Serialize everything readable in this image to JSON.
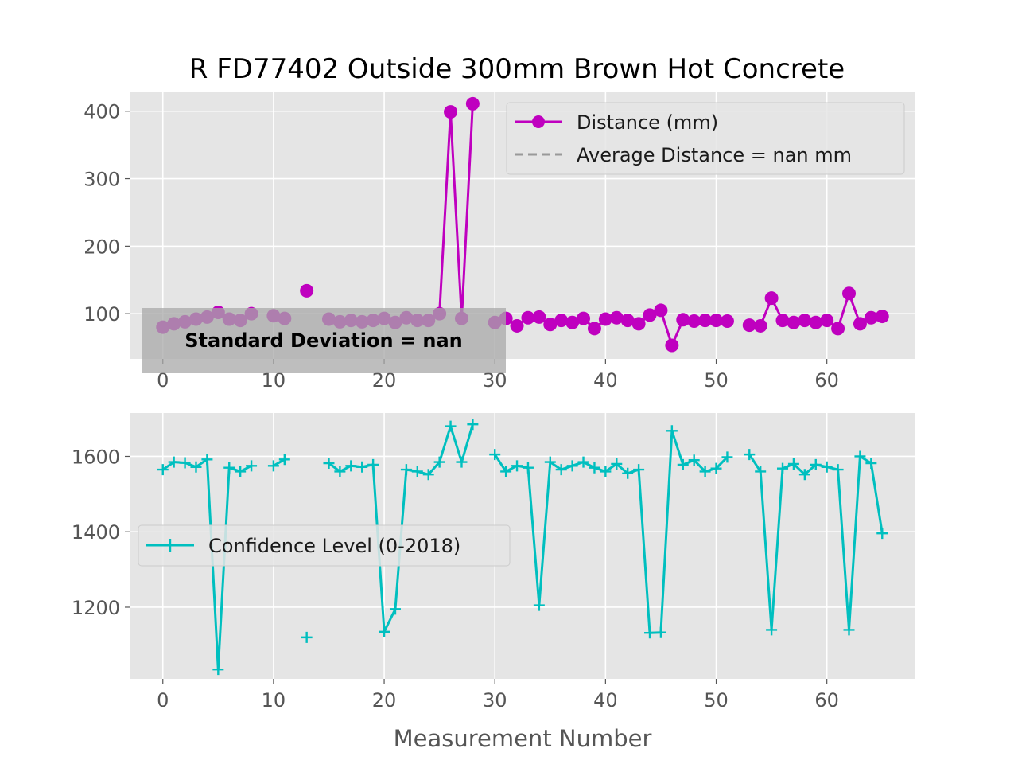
{
  "chart_data": [
    {
      "type": "line",
      "title": "R FD77402 Outside 300mm Brown Hot Concrete",
      "xlabel": "",
      "ylabel": "",
      "xlim": [
        -3,
        68
      ],
      "ylim": [
        33,
        428
      ],
      "xticks": [
        0,
        10,
        20,
        30,
        40,
        50,
        60
      ],
      "yticks": [
        100,
        200,
        300,
        400
      ],
      "grid": true,
      "legend_position": "upper-right",
      "annotation": "Standard Deviation = nan",
      "series": [
        {
          "name": "Distance (mm)",
          "color": "#bf00bf",
          "marker": "circle",
          "x": [
            0,
            1,
            2,
            3,
            4,
            5,
            6,
            7,
            8,
            9,
            10,
            11,
            12,
            13,
            14,
            15,
            16,
            17,
            18,
            19,
            20,
            21,
            22,
            23,
            24,
            25,
            26,
            27,
            28,
            29,
            30,
            31,
            32,
            33,
            34,
            35,
            36,
            37,
            38,
            39,
            40,
            41,
            42,
            43,
            44,
            45,
            46,
            47,
            48,
            49,
            50,
            51,
            52,
            53,
            54,
            55,
            56,
            57,
            58,
            59,
            60,
            61,
            62,
            63,
            64,
            65
          ],
          "y": [
            80,
            85,
            88,
            92,
            95,
            102,
            92,
            90,
            100,
            null,
            97,
            93,
            null,
            134,
            null,
            92,
            88,
            90,
            88,
            90,
            93,
            87,
            94,
            90,
            90,
            100,
            399,
            93,
            411,
            null,
            87,
            93,
            82,
            94,
            95,
            84,
            90,
            87,
            93,
            78,
            92,
            94,
            90,
            85,
            98,
            105,
            53,
            91,
            89,
            90,
            90,
            89,
            null,
            83,
            82,
            123,
            90,
            87,
            90,
            87,
            90,
            78,
            130,
            85,
            94,
            96
          ]
        },
        {
          "name": "Average Distance = nan mm",
          "color": "#999999",
          "style": "dashed",
          "x": [],
          "y": []
        }
      ]
    },
    {
      "type": "line",
      "title": "",
      "xlabel": "Measurement Number",
      "ylabel": "",
      "xlim": [
        -3,
        68
      ],
      "ylim": [
        1010,
        1715
      ],
      "xticks": [
        0,
        10,
        20,
        30,
        40,
        50,
        60
      ],
      "yticks": [
        1200,
        1400,
        1600
      ],
      "grid": true,
      "legend_position": "center-left",
      "series": [
        {
          "name": "Confidence Level (0-2018)",
          "color": "#00bfbf",
          "marker": "plus",
          "x": [
            0,
            1,
            2,
            3,
            4,
            5,
            6,
            7,
            8,
            9,
            10,
            11,
            12,
            13,
            14,
            15,
            16,
            17,
            18,
            19,
            20,
            21,
            22,
            23,
            24,
            25,
            26,
            27,
            28,
            29,
            30,
            31,
            32,
            33,
            34,
            35,
            36,
            37,
            38,
            39,
            40,
            41,
            42,
            43,
            44,
            45,
            46,
            47,
            48,
            49,
            50,
            51,
            52,
            53,
            54,
            55,
            56,
            57,
            58,
            59,
            60,
            61,
            62,
            63,
            64,
            65
          ],
          "y": [
            1565,
            1585,
            1583,
            1572,
            1592,
            1035,
            1570,
            1560,
            1575,
            null,
            1575,
            1592,
            null,
            1120,
            null,
            1582,
            1560,
            1575,
            1572,
            1578,
            1135,
            1195,
            1565,
            1560,
            1552,
            1585,
            1680,
            1585,
            1685,
            null,
            1605,
            1560,
            1575,
            1570,
            1205,
            1585,
            1565,
            1575,
            1585,
            1570,
            1560,
            1580,
            1555,
            1565,
            1132,
            1133,
            1668,
            1578,
            1590,
            1560,
            1568,
            1598,
            null,
            1605,
            1560,
            1140,
            1568,
            1580,
            1552,
            1578,
            1572,
            1565,
            1140,
            1600,
            1582,
            1396
          ]
        }
      ]
    }
  ]
}
